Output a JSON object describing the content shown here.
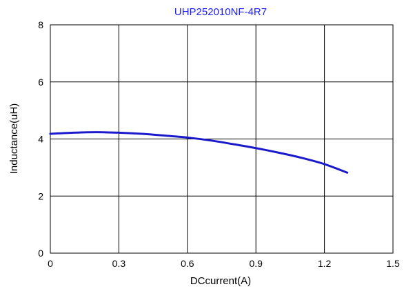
{
  "chart_data": {
    "type": "line",
    "title": "UHP252010NF-4R7",
    "xlabel": "DCcurrent(A)",
    "ylabel": "Inductance(uH)",
    "xlim": [
      0,
      1.5
    ],
    "ylim": [
      0,
      8
    ],
    "x_ticks": [
      "0",
      "0.3",
      "0.6",
      "0.9",
      "1.2",
      "1.5"
    ],
    "y_ticks": [
      "0",
      "2",
      "4",
      "6",
      "8"
    ],
    "grid": true,
    "legend": "none",
    "colors": {
      "series": "#1a1acc",
      "title": "#1a1aff"
    },
    "series": [
      {
        "x": [
          0,
          0.1,
          0.2,
          0.3,
          0.4,
          0.5,
          0.6,
          0.7,
          0.8,
          0.9,
          1.0,
          1.1,
          1.2,
          1.3
        ],
        "y": [
          4.18,
          4.22,
          4.24,
          4.22,
          4.18,
          4.12,
          4.05,
          3.95,
          3.82,
          3.68,
          3.52,
          3.34,
          3.12,
          2.82
        ]
      }
    ]
  }
}
